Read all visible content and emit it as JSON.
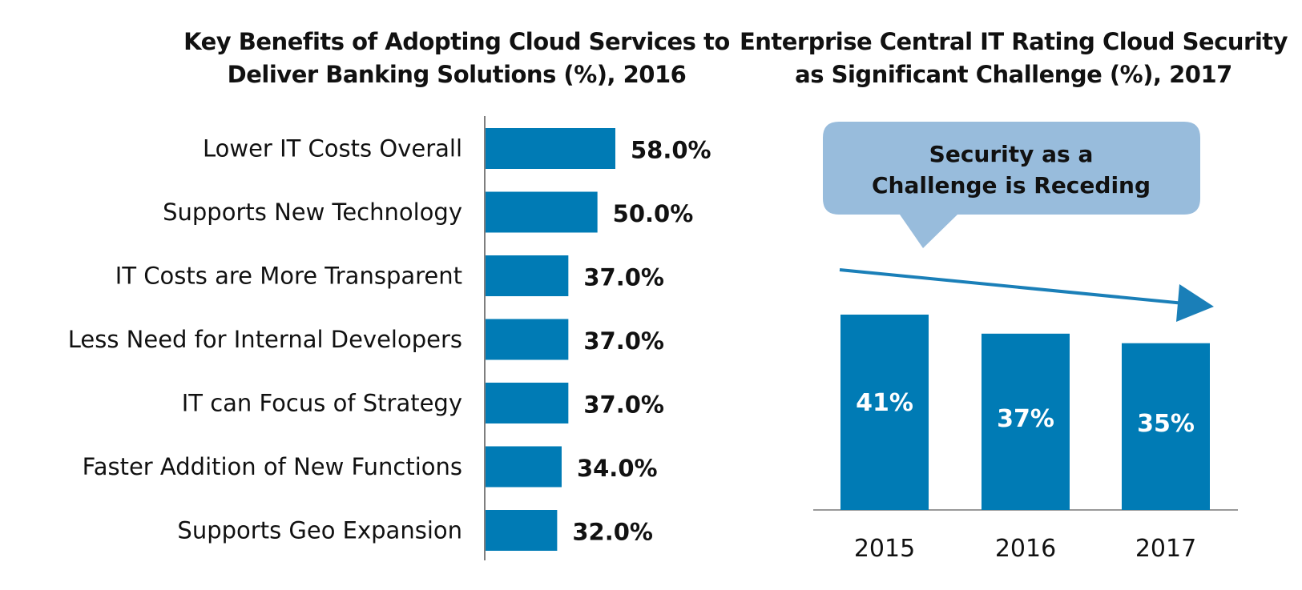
{
  "colors": {
    "bar": "#007bb5",
    "callout": "#98bcdc",
    "axis": "#555555",
    "baseline": "#999999",
    "arrow": "#1a7fb8"
  },
  "chart_data": [
    {
      "type": "bar",
      "orientation": "horizontal",
      "title": "Key Benefits of Adopting Cloud Services to Deliver Banking Solutions (%), 2016",
      "title_lines": [
        "Key Benefits of Adopting Cloud Services to",
        "Deliver Banking Solutions (%), 2016"
      ],
      "categories": [
        "Lower IT Costs Overall",
        "Supports New Technology",
        "IT Costs are More Transparent",
        "Less Need for Internal Developers",
        "IT can Focus of Strategy",
        "Faster Addition of New Functions",
        "Supports Geo Expansion"
      ],
      "values": [
        58.0,
        50.0,
        37.0,
        37.0,
        37.0,
        34.0,
        32.0
      ],
      "labels": [
        "58.0%",
        "50.0%",
        "37.0%",
        "37.0%",
        "37.0%",
        "34.0%",
        "32.0%"
      ],
      "xlabel": "",
      "ylabel": "",
      "xlim": [
        0,
        100
      ],
      "grid": false
    },
    {
      "type": "bar",
      "orientation": "vertical",
      "title": "Enterprise Central IT Rating Cloud Security as Significant Challenge (%), 2017",
      "title_lines": [
        "Enterprise Central IT Rating Cloud Security",
        "as Significant Challenge (%), 2017"
      ],
      "categories": [
        "2015",
        "2016",
        "2017"
      ],
      "values": [
        41,
        37,
        35
      ],
      "labels": [
        "41%",
        "37%",
        "35%"
      ],
      "xlabel": "",
      "ylabel": "",
      "ylim": [
        0,
        41
      ],
      "grid": false,
      "annotation": {
        "lines": [
          "Security as a",
          "Challenge is Receding"
        ],
        "trend": "downward arrow"
      }
    }
  ]
}
